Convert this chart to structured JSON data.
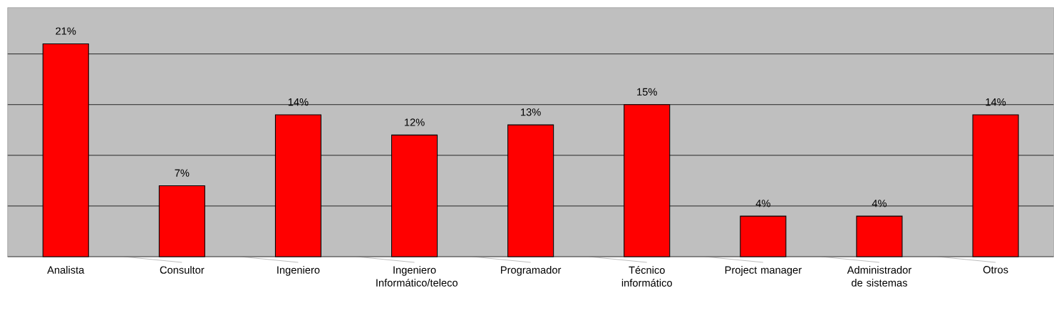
{
  "chart_data": {
    "type": "bar",
    "categories": [
      "Analista",
      "Consultor",
      "Ingeniero",
      "Ingeniero Informático/teleco",
      "Programador",
      "Técnico informático",
      "Project manager",
      "Administrador de sistemas",
      "Otros"
    ],
    "values": [
      21,
      7,
      14,
      12,
      13,
      15,
      4,
      4,
      14
    ],
    "value_labels": [
      "21%",
      "7%",
      "14%",
      "12%",
      "13%",
      "15%",
      "4%",
      "4%",
      "14%"
    ],
    "color": "#ff0000",
    "grid": "y"
  }
}
